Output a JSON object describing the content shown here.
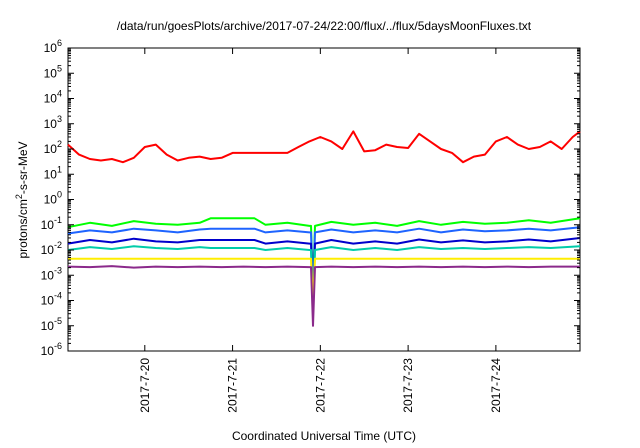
{
  "chart_data": {
    "type": "line",
    "title": "/data/run/goesPlots/archive/2017-07-24/22:00/flux/../flux/5daysMoonFluxes.txt",
    "xlabel": "Coordinated Universal Time (UTC)",
    "ylabel": {
      "prefix": "protons/cm",
      "superscript": "2",
      "suffix": "-s-sr-MeV"
    },
    "yscale": "log",
    "ylim": [
      1e-06,
      1000000.0
    ],
    "y_ticks": [
      {
        "base": "10",
        "exp": "-6"
      },
      {
        "base": "10",
        "exp": "-5"
      },
      {
        "base": "10",
        "exp": "-4"
      },
      {
        "base": "10",
        "exp": "-3"
      },
      {
        "base": "10",
        "exp": "-2"
      },
      {
        "base": "10",
        "exp": "-1"
      },
      {
        "base": "10",
        "exp": "0"
      },
      {
        "base": "10",
        "exp": "1"
      },
      {
        "base": "10",
        "exp": "2"
      },
      {
        "base": "10",
        "exp": "3"
      },
      {
        "base": "10",
        "exp": "4"
      },
      {
        "base": "10",
        "exp": "5"
      },
      {
        "base": "10",
        "exp": "6"
      }
    ],
    "xlim": [
      "2017-07-19 03:00",
      "2017-07-24 23:00"
    ],
    "x_ticks": [
      "2017-7-20",
      "2017-7-21",
      "2017-7-22",
      "2017-7-23",
      "2017-7-24"
    ],
    "x_tick_times": [
      "2017-07-20 00:00",
      "2017-07-21 00:00",
      "2017-07-22 00:00",
      "2017-07-23 00:00",
      "2017-07-24 00:00"
    ],
    "grid": false,
    "legend": "none",
    "series": [
      {
        "color": "#ff0000",
        "x": [
          "2017-07-19 03:00",
          "2017-07-19 06:00",
          "2017-07-19 09:00",
          "2017-07-19 12:00",
          "2017-07-19 15:00",
          "2017-07-19 18:00",
          "2017-07-19 21:00",
          "2017-07-20 00:00",
          "2017-07-20 03:00",
          "2017-07-20 06:00",
          "2017-07-20 09:00",
          "2017-07-20 12:00",
          "2017-07-20 15:00",
          "2017-07-20 18:00",
          "2017-07-20 21:00",
          "2017-07-21 00:00",
          "2017-07-21 03:00",
          "2017-07-21 06:00",
          "2017-07-21 09:00",
          "2017-07-21 12:00",
          "2017-07-21 15:00",
          "2017-07-21 18:00",
          "2017-07-21 21:00",
          "2017-07-22 00:00",
          "2017-07-22 03:00",
          "2017-07-22 06:00",
          "2017-07-22 09:00",
          "2017-07-22 12:00",
          "2017-07-22 15:00",
          "2017-07-22 18:00",
          "2017-07-22 21:00",
          "2017-07-23 00:00",
          "2017-07-23 03:00",
          "2017-07-23 06:00",
          "2017-07-23 09:00",
          "2017-07-23 12:00",
          "2017-07-23 15:00",
          "2017-07-23 18:00",
          "2017-07-23 21:00",
          "2017-07-24 00:00",
          "2017-07-24 03:00",
          "2017-07-24 06:00",
          "2017-07-24 09:00",
          "2017-07-24 12:00",
          "2017-07-24 15:00",
          "2017-07-24 18:00",
          "2017-07-24 21:00",
          "2017-07-24 23:00"
        ],
        "values": [
          150,
          60,
          40,
          35,
          40,
          30,
          45,
          120,
          150,
          60,
          35,
          45,
          50,
          40,
          45,
          70,
          70,
          70,
          70,
          70,
          70,
          120,
          200,
          300,
          200,
          100,
          500,
          80,
          90,
          150,
          120,
          110,
          400,
          200,
          100,
          70,
          30,
          50,
          60,
          200,
          300,
          150,
          100,
          120,
          200,
          100,
          300,
          500
        ]
      },
      {
        "color": "#00ff00",
        "x": [
          "2017-07-19 03:00",
          "2017-07-19 09:00",
          "2017-07-19 15:00",
          "2017-07-19 21:00",
          "2017-07-20 03:00",
          "2017-07-20 09:00",
          "2017-07-20 15:00",
          "2017-07-20 18:00",
          "2017-07-21 00:00",
          "2017-07-21 06:00",
          "2017-07-21 09:00",
          "2017-07-21 15:00",
          "2017-07-21 21:00",
          "2017-07-22 03:00",
          "2017-07-22 09:00",
          "2017-07-22 15:00",
          "2017-07-22 21:00",
          "2017-07-23 03:00",
          "2017-07-23 09:00",
          "2017-07-23 15:00",
          "2017-07-23 21:00",
          "2017-07-24 03:00",
          "2017-07-24 09:00",
          "2017-07-24 15:00",
          "2017-07-24 23:00"
        ],
        "values": [
          0.08,
          0.12,
          0.09,
          0.14,
          0.11,
          0.1,
          0.12,
          0.18,
          0.18,
          0.18,
          0.1,
          0.12,
          0.09,
          0.13,
          0.1,
          0.12,
          0.09,
          0.14,
          0.1,
          0.13,
          0.11,
          0.12,
          0.15,
          0.12,
          0.18
        ]
      },
      {
        "color": "#1e64ff",
        "x": [
          "2017-07-19 03:00",
          "2017-07-19 09:00",
          "2017-07-19 15:00",
          "2017-07-19 21:00",
          "2017-07-20 03:00",
          "2017-07-20 09:00",
          "2017-07-20 15:00",
          "2017-07-20 18:00",
          "2017-07-21 00:00",
          "2017-07-21 06:00",
          "2017-07-21 09:00",
          "2017-07-21 15:00",
          "2017-07-21 21:00",
          "2017-07-22 03:00",
          "2017-07-22 09:00",
          "2017-07-22 15:00",
          "2017-07-22 21:00",
          "2017-07-23 03:00",
          "2017-07-23 09:00",
          "2017-07-23 15:00",
          "2017-07-23 21:00",
          "2017-07-24 03:00",
          "2017-07-24 09:00",
          "2017-07-24 15:00",
          "2017-07-24 23:00"
        ],
        "values": [
          0.045,
          0.06,
          0.05,
          0.07,
          0.06,
          0.05,
          0.065,
          0.07,
          0.07,
          0.07,
          0.05,
          0.06,
          0.05,
          0.065,
          0.05,
          0.06,
          0.05,
          0.07,
          0.05,
          0.065,
          0.055,
          0.06,
          0.07,
          0.06,
          0.08
        ]
      },
      {
        "color": "#0000cc",
        "x": [
          "2017-07-19 03:00",
          "2017-07-19 09:00",
          "2017-07-19 15:00",
          "2017-07-19 21:00",
          "2017-07-20 03:00",
          "2017-07-20 09:00",
          "2017-07-20 15:00",
          "2017-07-20 18:00",
          "2017-07-21 00:00",
          "2017-07-21 06:00",
          "2017-07-21 09:00",
          "2017-07-21 15:00",
          "2017-07-21 21:00",
          "2017-07-22 03:00",
          "2017-07-22 09:00",
          "2017-07-22 15:00",
          "2017-07-22 21:00",
          "2017-07-23 03:00",
          "2017-07-23 09:00",
          "2017-07-23 15:00",
          "2017-07-23 21:00",
          "2017-07-24 03:00",
          "2017-07-24 09:00",
          "2017-07-24 15:00",
          "2017-07-24 23:00"
        ],
        "values": [
          0.018,
          0.025,
          0.02,
          0.028,
          0.022,
          0.02,
          0.025,
          0.025,
          0.025,
          0.025,
          0.018,
          0.022,
          0.018,
          0.025,
          0.018,
          0.022,
          0.018,
          0.026,
          0.02,
          0.024,
          0.02,
          0.022,
          0.026,
          0.022,
          0.03
        ]
      },
      {
        "color": "#00ccaa",
        "x": [
          "2017-07-19 03:00",
          "2017-07-19 09:00",
          "2017-07-19 15:00",
          "2017-07-19 21:00",
          "2017-07-20 03:00",
          "2017-07-20 09:00",
          "2017-07-20 15:00",
          "2017-07-20 18:00",
          "2017-07-21 00:00",
          "2017-07-21 06:00",
          "2017-07-21 09:00",
          "2017-07-21 15:00",
          "2017-07-21 21:00",
          "2017-07-22 03:00",
          "2017-07-22 09:00",
          "2017-07-22 15:00",
          "2017-07-22 21:00",
          "2017-07-23 03:00",
          "2017-07-23 09:00",
          "2017-07-23 15:00",
          "2017-07-23 21:00",
          "2017-07-24 03:00",
          "2017-07-24 09:00",
          "2017-07-24 15:00",
          "2017-07-24 23:00"
        ],
        "values": [
          0.01,
          0.013,
          0.011,
          0.014,
          0.012,
          0.011,
          0.013,
          0.012,
          0.012,
          0.012,
          0.01,
          0.012,
          0.01,
          0.013,
          0.01,
          0.012,
          0.01,
          0.013,
          0.011,
          0.012,
          0.011,
          0.012,
          0.013,
          0.012,
          0.014
        ]
      },
      {
        "color": "#ffee00",
        "x": [
          "2017-07-19 03:00",
          "2017-07-20 00:00",
          "2017-07-21 00:00",
          "2017-07-21 21:00",
          "2017-07-22 03:00",
          "2017-07-23 00:00",
          "2017-07-24 00:00",
          "2017-07-24 23:00"
        ],
        "values": [
          0.0045,
          0.0045,
          0.0045,
          0.0045,
          0.0045,
          0.0045,
          0.0045,
          0.0045
        ]
      },
      {
        "color": "#8b2a8b",
        "x": [
          "2017-07-19 03:00",
          "2017-07-19 09:00",
          "2017-07-19 15:00",
          "2017-07-19 21:00",
          "2017-07-20 03:00",
          "2017-07-20 09:00",
          "2017-07-20 15:00",
          "2017-07-20 21:00",
          "2017-07-21 03:00",
          "2017-07-21 09:00",
          "2017-07-21 15:00",
          "2017-07-21 21:00",
          "2017-07-22 03:00",
          "2017-07-22 09:00",
          "2017-07-22 15:00",
          "2017-07-22 21:00",
          "2017-07-23 03:00",
          "2017-07-23 09:00",
          "2017-07-23 15:00",
          "2017-07-23 21:00",
          "2017-07-24 03:00",
          "2017-07-24 09:00",
          "2017-07-24 15:00",
          "2017-07-24 23:00"
        ],
        "values": [
          0.0022,
          0.0021,
          0.0023,
          0.002,
          0.0022,
          0.0021,
          0.0022,
          0.0021,
          0.0022,
          0.0021,
          0.0022,
          0.0021,
          0.0022,
          0.0021,
          0.0022,
          0.0021,
          0.0022,
          0.0021,
          0.0022,
          0.0021,
          0.0022,
          0.0021,
          0.0022,
          0.0022
        ]
      }
    ],
    "dropout": {
      "time": "2017-07-21 22:00",
      "values": {
        "#00ff00": 0.0003,
        "#1e64ff": 0.0002,
        "#0000cc": 5e-05,
        "#00ccaa": 3e-05,
        "#ffee00": 8e-05,
        "#8b2a8b": 1e-05
      }
    }
  }
}
